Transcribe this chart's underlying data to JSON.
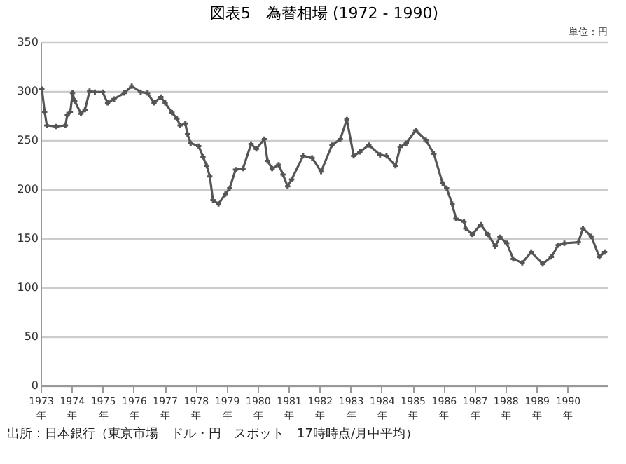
{
  "chart_data": {
    "type": "line",
    "title": "図表5　為替相場 (1972 - 1990)",
    "annotations": [
      "単位：円",
      "出所：日本銀行（東京市場　ドル・円　スポット　17時時点/月中平均）"
    ],
    "x": [
      1973.04,
      1973.13,
      1973.2,
      1973.5,
      1973.8,
      1973.86,
      1973.96,
      1974.03,
      1974.1,
      1974.3,
      1974.43,
      1974.58,
      1974.75,
      1975.0,
      1975.16,
      1975.37,
      1975.7,
      1975.94,
      1976.23,
      1976.45,
      1976.66,
      1976.88,
      1977.02,
      1977.24,
      1977.4,
      1977.5,
      1977.67,
      1977.74,
      1977.84,
      1978.1,
      1978.24,
      1978.36,
      1978.46,
      1978.56,
      1978.74,
      1978.96,
      1979.1,
      1979.29,
      1979.53,
      1979.79,
      1979.96,
      1980.22,
      1980.32,
      1980.47,
      1980.68,
      1980.82,
      1980.97,
      1981.1,
      1981.47,
      1981.76,
      1982.05,
      1982.4,
      1982.67,
      1982.88,
      1983.1,
      1983.3,
      1983.59,
      1983.95,
      1984.16,
      1984.45,
      1984.6,
      1984.8,
      1985.1,
      1985.43,
      1985.69,
      1985.97,
      1986.1,
      1986.28,
      1986.4,
      1986.66,
      1986.72,
      1986.93,
      1987.2,
      1987.43,
      1987.67,
      1987.82,
      1988.04,
      1988.25,
      1988.54,
      1988.83,
      1989.2,
      1989.48,
      1989.7,
      1989.9,
      1990.35,
      1990.5,
      1990.77,
      1991.03,
      1991.2
    ],
    "values": [
      302,
      279,
      265,
      264,
      265,
      276,
      279,
      298,
      290,
      277,
      281,
      300,
      299,
      299,
      288,
      292,
      298,
      305,
      299,
      298,
      288,
      294,
      288,
      278,
      272,
      265,
      267,
      256,
      247,
      244,
      233,
      224,
      213,
      189,
      185,
      195,
      201,
      220,
      221,
      246,
      241,
      251,
      229,
      221,
      225,
      215,
      203,
      210,
      234,
      232,
      218,
      245,
      251,
      271,
      234,
      238,
      245,
      235,
      234,
      224,
      243,
      247,
      260,
      250,
      236,
      206,
      201,
      185,
      170,
      167,
      160,
      154,
      164,
      154,
      142,
      151,
      145,
      129,
      125,
      136,
      124,
      131,
      143,
      145,
      146,
      160,
      152,
      131,
      136
    ],
    "color": "#555555",
    "marker": "cross",
    "line_style": "solid",
    "xlim": [
      1973,
      1991.3
    ],
    "xticks": [
      {
        "value": 1973,
        "label": "1973\n年"
      },
      {
        "value": 1974,
        "label": "1974\n年"
      },
      {
        "value": 1975,
        "label": "1975\n年"
      },
      {
        "value": 1976,
        "label": "1976\n年"
      },
      {
        "value": 1977,
        "label": "1977\n年"
      },
      {
        "value": 1978,
        "label": "1978\n年"
      },
      {
        "value": 1979,
        "label": "1979\n年"
      },
      {
        "value": 1980,
        "label": "1980\n年"
      },
      {
        "value": 1981,
        "label": "1981\n年"
      },
      {
        "value": 1982,
        "label": "1982\n年"
      },
      {
        "value": 1983,
        "label": "1983\n年"
      },
      {
        "value": 1984,
        "label": "1984\n年"
      },
      {
        "value": 1985,
        "label": "1985\n年"
      },
      {
        "value": 1986,
        "label": "1986\n年"
      },
      {
        "value": 1987,
        "label": "1987\n年"
      },
      {
        "value": 1988,
        "label": "1988\n年"
      },
      {
        "value": 1989,
        "label": "1989\n年"
      },
      {
        "value": 1990,
        "label": "1990\n年"
      }
    ],
    "ylim": [
      0,
      350
    ],
    "yticks": [
      0,
      50,
      100,
      150,
      200,
      250,
      300,
      350
    ],
    "grid": "y",
    "legend": false
  }
}
